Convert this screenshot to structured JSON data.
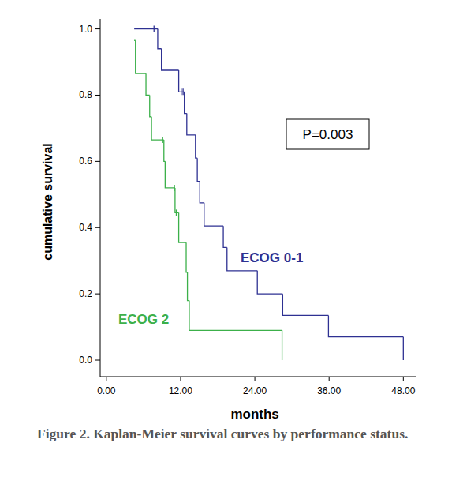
{
  "chart_data": {
    "type": "line",
    "line_style": "step",
    "title": "Figure 2. Kaplan-Meier survival curves by performance status.",
    "x_label": "months",
    "y_label": "cumulative survival",
    "annotation": "P=0.003",
    "xlim": [
      -1,
      50
    ],
    "ylim": [
      -0.05,
      1.03
    ],
    "xticks": [
      {
        "value": 0,
        "label": "0.00"
      },
      {
        "value": 12,
        "label": "12.00"
      },
      {
        "value": 24,
        "label": "24.00"
      },
      {
        "value": 36,
        "label": "36.00"
      },
      {
        "value": 48,
        "label": "48.00"
      }
    ],
    "yticks": [
      {
        "value": 0,
        "label": "0.0"
      },
      0.2,
      0.4,
      0.6,
      0.8,
      {
        "value": 1,
        "label": "1.0"
      }
    ],
    "grid": false,
    "series": [
      {
        "name": "ECOG 0-1",
        "color": "#2e3192",
        "x": [
          4.5,
          8.3,
          8.9,
          11.7,
          12.6,
          13.0,
          14.4,
          14.7,
          15.1,
          15.8,
          18.9,
          19.5,
          24.4,
          28.5,
          35.9,
          48.0
        ],
        "values": [
          1.0,
          0.94,
          0.875,
          0.81,
          0.745,
          0.68,
          0.61,
          0.54,
          0.475,
          0.405,
          0.34,
          0.27,
          0.2,
          0.135,
          0.07,
          0.0
        ],
        "censored": [
          7.7,
          12.1,
          12.4
        ]
      },
      {
        "name": "ECOG 2",
        "color": "#3cb04a",
        "x": [
          4.5,
          4.7,
          6.4,
          7.0,
          7.3,
          9.3,
          9.5,
          11.1,
          11.7,
          12.9,
          13.1,
          13.4,
          28.4
        ],
        "values": [
          0.965,
          0.865,
          0.8,
          0.735,
          0.665,
          0.6,
          0.52,
          0.445,
          0.355,
          0.265,
          0.18,
          0.09,
          0.0
        ],
        "censored": [
          9.1,
          11.0,
          11.3
        ]
      }
    ]
  }
}
